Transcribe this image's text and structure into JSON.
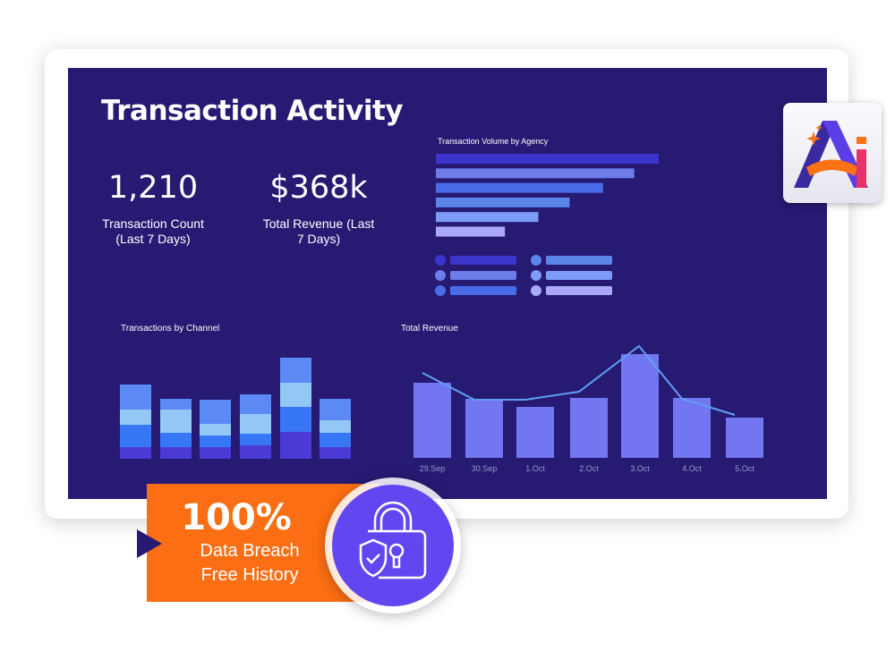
{
  "title": "Transaction Activity",
  "stats": [
    {
      "value": "1,210",
      "label_line1": "Transaction Count",
      "label_line2": "(Last 7 Days)"
    },
    {
      "value": "$368k",
      "label_line1": "Total Revenue (Last",
      "label_line2": "7 Days)"
    }
  ],
  "badge": {
    "percent": "100%",
    "line1": "Data Breach",
    "line2": "Free History"
  },
  "logo_text": "Ai",
  "chart_data": [
    {
      "type": "bar",
      "orientation": "horizontal",
      "title": "Transaction Volume by Agency",
      "values": [
        100,
        89,
        75,
        60,
        46,
        31
      ],
      "colors": [
        "#3b35cc",
        "#6c7ce8",
        "#4a6be8",
        "#5c85ea",
        "#7d9cf8",
        "#a9a9f8"
      ],
      "legend_placement": "bottom"
    },
    {
      "type": "bar",
      "stacked": true,
      "title": "Transactions by Channel",
      "series": [
        {
          "color": "#4a3bd6",
          "values": [
            13,
            13,
            13,
            15,
            30,
            13
          ]
        },
        {
          "color": "#3777f5",
          "values": [
            25,
            16,
            13,
            13,
            28,
            16
          ]
        },
        {
          "color": "#93c8f5",
          "values": [
            17,
            26,
            13,
            22,
            27,
            14
          ]
        },
        {
          "color": "#5b8af5",
          "values": [
            28,
            12,
            27,
            22,
            28,
            24
          ]
        }
      ]
    },
    {
      "type": "bar",
      "title": "Total Revenue",
      "categories": [
        "29.Sep",
        "30.Sep",
        "1.Oct",
        "2.Oct",
        "3.Oct",
        "4.Oct",
        "5.Oct"
      ],
      "bars": [
        84,
        66,
        57,
        67,
        116,
        67,
        45
      ],
      "line": [
        95,
        65,
        65,
        74,
        125,
        66,
        48
      ],
      "bar_color": "#7276f0",
      "line_color": "#5fa0f5"
    }
  ]
}
